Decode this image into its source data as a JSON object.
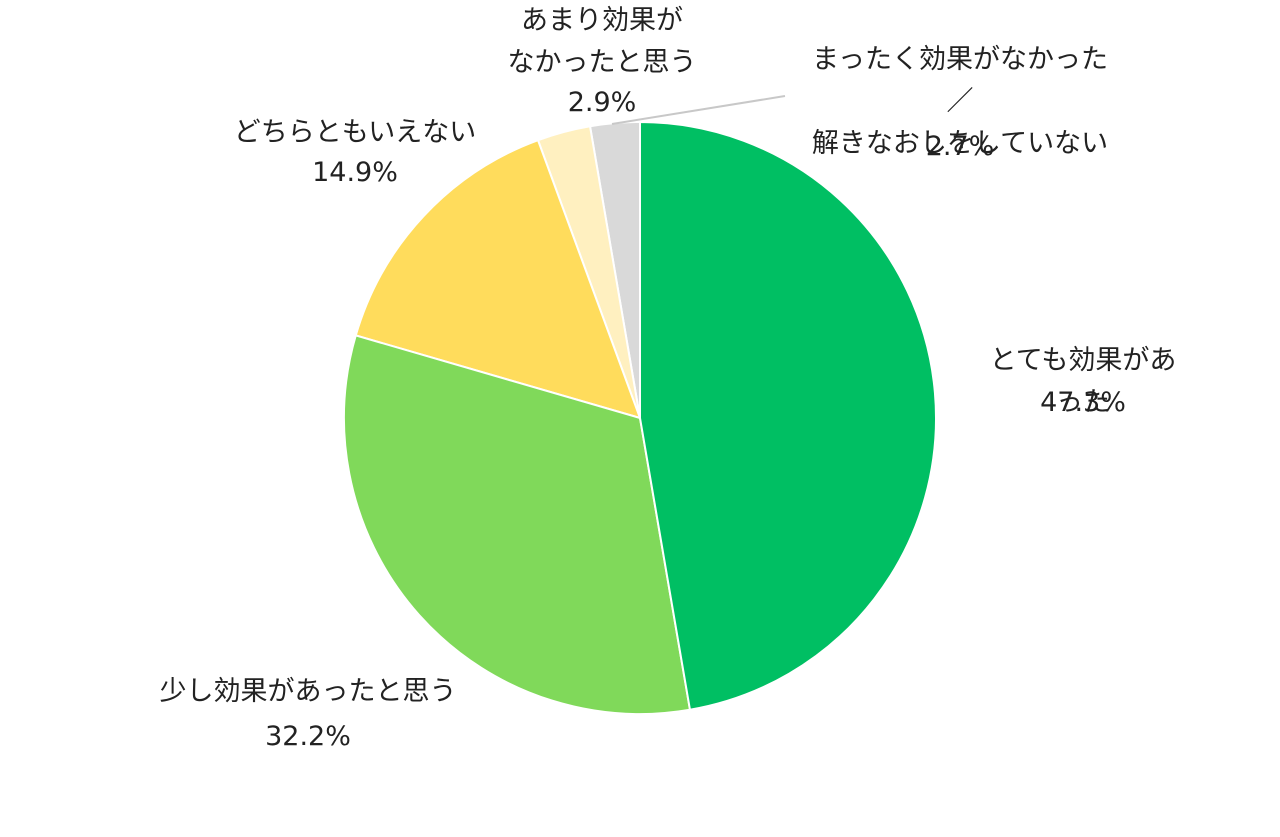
{
  "chart_data": {
    "type": "pie",
    "categories": [
      "とても効果があった",
      "少し効果があったと思う",
      "どちらともいえない",
      "あまり効果が\nなかったと思う",
      "まったく効果がなかった／\n解きなおしをしていない"
    ],
    "values": [
      47.3,
      32.2,
      14.9,
      2.9,
      2.7
    ],
    "value_labels": [
      "47.3%",
      "32.2%",
      "14.9%",
      "2.9%",
      "2.7%"
    ],
    "colors": [
      "#00bf63",
      "#80d95a",
      "#ffdc5c",
      "#fff0c0",
      "#d9d9d9"
    ]
  }
}
